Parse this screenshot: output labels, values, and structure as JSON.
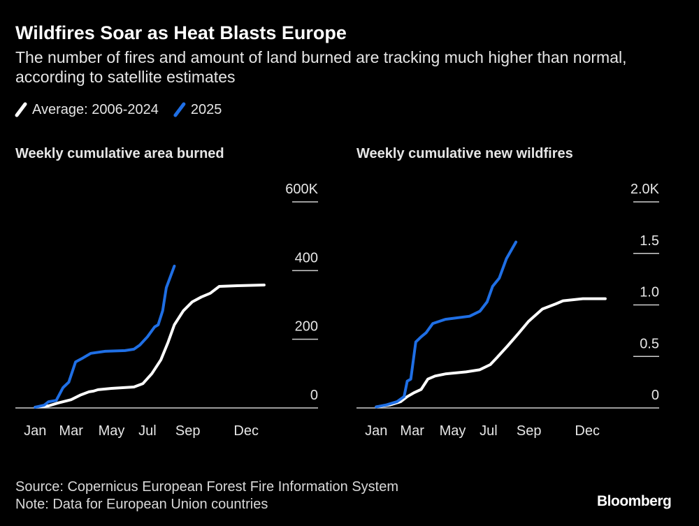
{
  "title": "Wildfires Soar as Heat Blasts Europe",
  "subtitle": "The number of fires and amount of land burned are tracking much higher than normal, according to satellite estimates",
  "source": "Source: Copernicus European Forest Fire Information System",
  "note": "Note: Data for European Union countries",
  "brand": "Bloomberg",
  "chart_data": [
    {
      "type": "line",
      "title": "Weekly cumulative area burned",
      "xlim": [
        -3.4,
        64
      ],
      "xticks": [
        {
          "value": 1,
          "label": "Jan"
        },
        {
          "value": 9,
          "label": "Mar"
        },
        {
          "value": 18,
          "label": "May"
        },
        {
          "value": 26,
          "label": "Jul"
        },
        {
          "value": 35,
          "label": "Sep"
        },
        {
          "value": 48,
          "label": "Dec"
        }
      ],
      "ylim": [
        0,
        600
      ],
      "yticks": [
        0,
        200,
        400,
        {
          "value": 600,
          "label": "600K"
        }
      ],
      "series": [
        {
          "name": "Average: 2006-2024",
          "color": "#ffffff",
          "x": [
            1,
            4,
            6,
            9,
            11,
            13,
            14,
            15,
            18,
            23,
            25,
            27,
            29,
            30.6,
            32,
            34,
            36,
            38,
            40,
            42,
            46,
            52
          ],
          "values": [
            2,
            6,
            14,
            24,
            37,
            47,
            49,
            53,
            57,
            61,
            71,
            100,
            140,
            191,
            242,
            283,
            309,
            323,
            334,
            354,
            356,
            358
          ]
        },
        {
          "name": "2025",
          "color": "#1f6fe5",
          "x": [
            1,
            3,
            4,
            5.7,
            7.2,
            8.5,
            10,
            11.7,
            13.4,
            16.6,
            21,
            23,
            24.3,
            26,
            27.6,
            28.4,
            29.4,
            30.2,
            32
          ],
          "values": [
            2,
            8,
            18,
            22,
            59,
            75,
            134,
            146,
            159,
            165,
            167,
            171,
            183,
            207,
            236,
            242,
            283,
            350,
            413
          ]
        }
      ]
    },
    {
      "type": "line",
      "title": "Weekly cumulative new wildfires",
      "xlim": [
        -3.4,
        64
      ],
      "xticks": [
        {
          "value": 1,
          "label": "Jan"
        },
        {
          "value": 9,
          "label": "Mar"
        },
        {
          "value": 18,
          "label": "May"
        },
        {
          "value": 26,
          "label": "Jul"
        },
        {
          "value": 35,
          "label": "Sep"
        },
        {
          "value": 48,
          "label": "Dec"
        }
      ],
      "ylim": [
        0,
        2
      ],
      "yticks": [
        0,
        0.5,
        {
          "value": 1,
          "label": "1.0"
        },
        1.5,
        {
          "value": 2,
          "label": "2.0K"
        }
      ],
      "series": [
        {
          "color": "#ffffff",
          "x": [
            1,
            4.1,
            6.4,
            7.9,
            9.5,
            11,
            12.5,
            14.1,
            16.4,
            21,
            24,
            26.4,
            27.9,
            30.2,
            32.6,
            34.9,
            38,
            41,
            42.6,
            47,
            52
          ],
          "values": [
            0.01,
            0.03,
            0.06,
            0.11,
            0.15,
            0.18,
            0.28,
            0.31,
            0.33,
            0.35,
            0.37,
            0.42,
            0.49,
            0.6,
            0.72,
            0.84,
            0.96,
            1.01,
            1.04,
            1.06,
            1.06
          ]
        },
        {
          "color": "#1f6fe5",
          "x": [
            1,
            3.3,
            5.6,
            7.2,
            7.9,
            8.7,
            9.8,
            11,
            12.1,
            13.6,
            16.4,
            21.8,
            24.1,
            25.7,
            26.9,
            28.4,
            30,
            32.1
          ],
          "values": [
            0.01,
            0.03,
            0.06,
            0.11,
            0.26,
            0.28,
            0.64,
            0.69,
            0.73,
            0.82,
            0.86,
            0.89,
            0.94,
            1.03,
            1.18,
            1.26,
            1.45,
            1.61
          ]
        }
      ]
    }
  ]
}
